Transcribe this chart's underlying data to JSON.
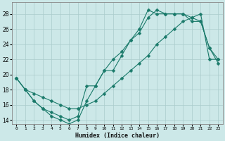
{
  "xlabel": "Humidex (Indice chaleur)",
  "background_color": "#cce8e8",
  "grid_color": "#aacccc",
  "line_color": "#1a7a6a",
  "xlim": [
    -0.5,
    23.5
  ],
  "ylim": [
    13.5,
    29.5
  ],
  "xticks": [
    0,
    1,
    2,
    3,
    4,
    5,
    6,
    7,
    8,
    9,
    10,
    11,
    12,
    13,
    14,
    15,
    16,
    17,
    18,
    19,
    20,
    21,
    22,
    23
  ],
  "yticks": [
    14,
    16,
    18,
    20,
    22,
    24,
    26,
    28
  ],
  "line1_x": [
    0,
    1,
    2,
    3,
    4,
    5,
    6,
    7,
    8,
    9,
    10,
    11,
    12,
    13,
    14,
    15,
    16,
    17,
    18,
    19,
    20,
    21,
    22,
    23
  ],
  "line1_y": [
    19.5,
    18.0,
    16.5,
    15.5,
    15.0,
    14.5,
    14.0,
    14.5,
    18.5,
    18.5,
    20.5,
    20.5,
    22.5,
    24.5,
    26.0,
    28.5,
    28.0,
    28.0,
    28.0,
    28.0,
    27.5,
    27.0,
    23.5,
    21.5
  ],
  "line2_x": [
    0,
    1,
    2,
    3,
    4,
    5,
    6,
    7,
    8,
    9,
    10,
    11,
    12,
    13,
    14,
    15,
    16,
    17,
    18,
    19,
    20,
    21,
    22,
    23
  ],
  "line2_y": [
    19.5,
    18.0,
    17.5,
    17.0,
    16.5,
    16.0,
    15.5,
    15.5,
    16.0,
    16.5,
    17.5,
    18.5,
    19.5,
    20.5,
    21.5,
    22.5,
    24.0,
    25.0,
    26.0,
    27.0,
    27.5,
    28.0,
    22.0,
    22.0
  ],
  "line3_x": [
    0,
    1,
    2,
    3,
    4,
    5,
    6,
    7,
    8,
    9,
    10,
    11,
    12,
    13,
    14,
    15,
    16,
    17,
    18,
    19,
    20,
    21,
    22,
    23
  ],
  "line3_y": [
    19.5,
    18.0,
    16.5,
    15.5,
    14.5,
    14.0,
    13.5,
    14.0,
    16.5,
    18.5,
    20.5,
    22.0,
    23.0,
    24.5,
    25.5,
    27.5,
    28.5,
    28.0,
    28.0,
    28.0,
    27.0,
    27.0,
    23.5,
    22.0
  ]
}
